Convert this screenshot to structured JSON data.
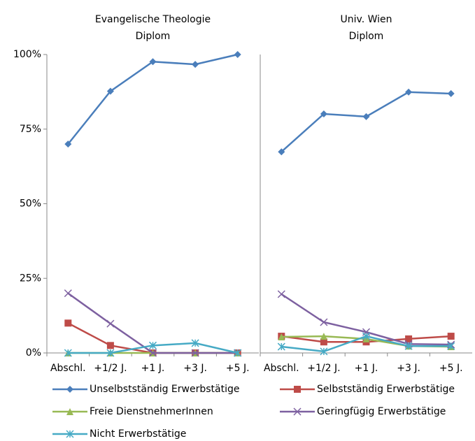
{
  "chart_data": [
    {
      "type": "line",
      "title": "Evangelische Theologie",
      "subtitle": "Diplom",
      "categories": [
        "Abschl.",
        "+1/2 J.",
        "+1 J.",
        "+3 J.",
        "+5 J."
      ],
      "ylim": [
        0,
        100
      ],
      "yticks": [
        {
          "value": 0,
          "label": "0%"
        },
        {
          "value": 25,
          "label": "25%"
        },
        {
          "value": 50,
          "label": "50%"
        },
        {
          "value": 75,
          "label": "75%"
        },
        {
          "value": 100,
          "label": "100%"
        }
      ],
      "series": [
        {
          "name": "Unselbstständig Erwerbstätige",
          "color": "#4a7ebb",
          "values": [
            70.0,
            87.7,
            97.6,
            96.7,
            100
          ]
        },
        {
          "name": "Selbstständig Erwerbstätige",
          "color": "#be4b48",
          "values": [
            10.0,
            2.5,
            0,
            0,
            0
          ]
        },
        {
          "name": "Freie DienstnehmerInnen",
          "color": "#98b954",
          "values": [
            0,
            0,
            0,
            0,
            0
          ]
        },
        {
          "name": "Geringfügig Erwerbstätige",
          "color": "#7d60a0",
          "values": [
            20.0,
            9.8,
            0,
            0,
            0
          ]
        },
        {
          "name": "Nicht Erwerbstätige",
          "color": "#46aac5",
          "values": [
            0,
            0,
            2.5,
            3.3,
            0
          ]
        }
      ]
    },
    {
      "type": "line",
      "title": "Univ. Wien",
      "subtitle": "Diplom",
      "categories": [
        "Abschl.",
        "+1/2 J.",
        "+1 J.",
        "+3 J.",
        "+5 J."
      ],
      "ylim": [
        0,
        100
      ],
      "series": [
        {
          "color": "#4a7ebb",
          "values": [
            67.4,
            80.1,
            79.2,
            87.4,
            86.9
          ]
        },
        {
          "color": "#be4b48",
          "values": [
            5.6,
            3.7,
            3.7,
            4.7,
            5.6
          ]
        },
        {
          "color": "#98b954",
          "values": [
            5.4,
            5.6,
            4.7,
            2.3,
            2.1
          ]
        },
        {
          "color": "#7d60a0",
          "values": [
            19.7,
            10.3,
            7.0,
            3.0,
            2.8
          ]
        },
        {
          "color": "#46aac5",
          "values": [
            2.1,
            0.5,
            5.6,
            2.3,
            2.3
          ]
        }
      ]
    }
  ]
}
